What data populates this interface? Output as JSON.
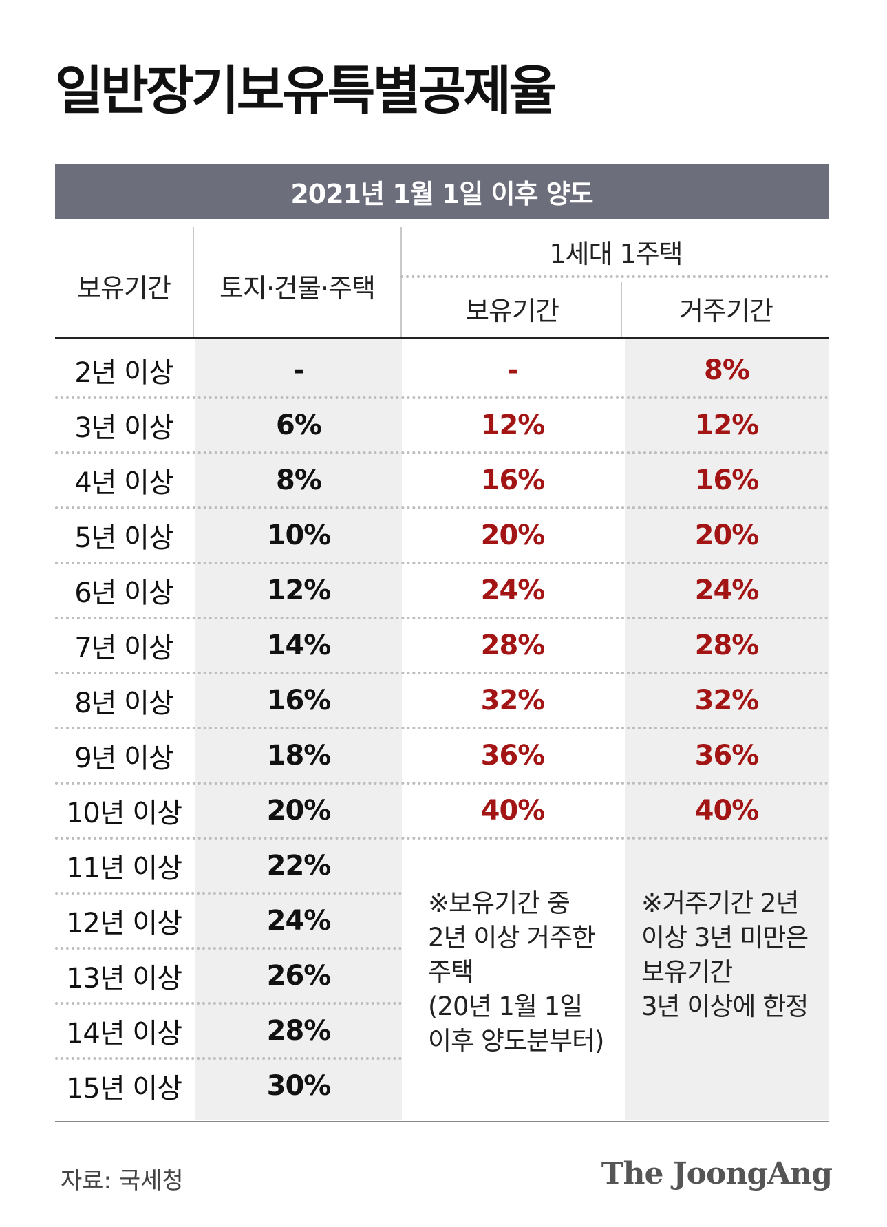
{
  "title": "일반장기보유특별공제율",
  "banner": "2021년 1월 1일 이후 양도",
  "header": {
    "period": "보유기간",
    "land": "토지·건물·주택",
    "group": "1세대 1주택",
    "holding": "보유기간",
    "residence": "거주기간"
  },
  "rows": [
    {
      "period": "2년 이상",
      "land": "-",
      "holding": "-",
      "residence": "8%"
    },
    {
      "period": "3년 이상",
      "land": "6%",
      "holding": "12%",
      "residence": "12%"
    },
    {
      "period": "4년 이상",
      "land": "8%",
      "holding": "16%",
      "residence": "16%"
    },
    {
      "period": "5년 이상",
      "land": "10%",
      "holding": "20%",
      "residence": "20%"
    },
    {
      "period": "6년 이상",
      "land": "12%",
      "holding": "24%",
      "residence": "24%"
    },
    {
      "period": "7년 이상",
      "land": "14%",
      "holding": "28%",
      "residence": "28%"
    },
    {
      "period": "8년 이상",
      "land": "16%",
      "holding": "32%",
      "residence": "32%"
    },
    {
      "period": "9년 이상",
      "land": "18%",
      "holding": "36%",
      "residence": "36%"
    },
    {
      "period": "10년 이상",
      "land": "20%",
      "holding": "40%",
      "residence": "40%"
    },
    {
      "period": "11년 이상",
      "land": "22%",
      "holding": "",
      "residence": ""
    },
    {
      "period": "12년 이상",
      "land": "24%",
      "holding": "",
      "residence": ""
    },
    {
      "period": "13년 이상",
      "land": "26%",
      "holding": "",
      "residence": ""
    },
    {
      "period": "14년 이상",
      "land": "28%",
      "holding": "",
      "residence": ""
    },
    {
      "period": "15년 이상",
      "land": "30%",
      "holding": "",
      "residence": ""
    }
  ],
  "notes": {
    "holding": [
      "※보유기간 중",
      "2년 이상 거주한",
      "주택",
      "(20년 1월 1일",
      "이후 양도분부터)"
    ],
    "residence": [
      "※거주기간 2년",
      "이상 3년 미만은",
      "보유기간",
      "3년 이상에 한정"
    ]
  },
  "source": "자료: 국세청",
  "brand": "The JoongAng",
  "colors": {
    "banner": "#6d6e7c",
    "highlight": "#a31515",
    "shade": "#efefef"
  },
  "chart_data": {
    "type": "table",
    "title": "일반장기보유특별공제율",
    "subtitle": "2021년 1월 1일 이후 양도",
    "columns": [
      "보유기간",
      "토지·건물·주택",
      "1세대 1주택 보유기간",
      "1세대 1주택 거주기간"
    ],
    "categories": [
      "2년 이상",
      "3년 이상",
      "4년 이상",
      "5년 이상",
      "6년 이상",
      "7년 이상",
      "8년 이상",
      "9년 이상",
      "10년 이상",
      "11년 이상",
      "12년 이상",
      "13년 이상",
      "14년 이상",
      "15년 이상"
    ],
    "series": [
      {
        "name": "토지·건물·주택",
        "values": [
          null,
          6,
          8,
          10,
          12,
          14,
          16,
          18,
          20,
          22,
          24,
          26,
          28,
          30
        ]
      },
      {
        "name": "보유기간",
        "values": [
          null,
          12,
          16,
          20,
          24,
          28,
          32,
          36,
          40,
          null,
          null,
          null,
          null,
          null
        ]
      },
      {
        "name": "거주기간",
        "values": [
          8,
          12,
          16,
          20,
          24,
          28,
          32,
          36,
          40,
          null,
          null,
          null,
          null,
          null
        ]
      }
    ]
  }
}
